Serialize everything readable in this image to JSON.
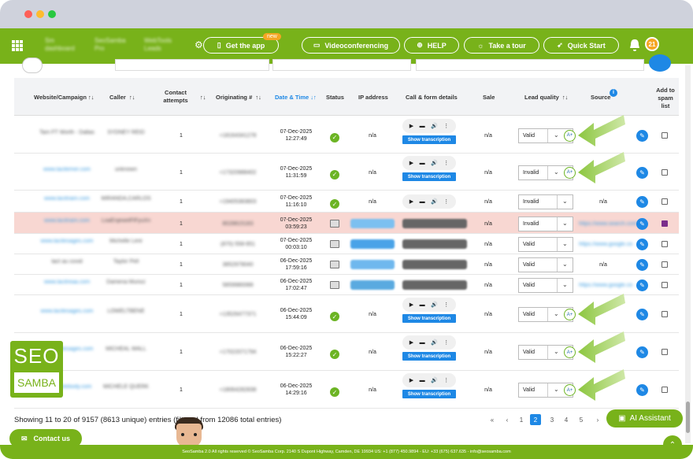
{
  "nav": {
    "dashboard": "Sm dashboard",
    "pro": "SeoSamba Pro",
    "leads": "WebTools Leads",
    "get_app": "Get the app",
    "new_badge": "new",
    "videoconf": "Videoconferencing",
    "help": "HELP",
    "tour": "Take a tour",
    "quickstart": "Quick Start",
    "notifications": "21"
  },
  "headers": {
    "website": "Website/Campaign",
    "caller": "Caller",
    "contact_attempts": "Contact attempts",
    "originating": "Originating #",
    "datetime": "Date & Time",
    "status": "Status",
    "ip": "IP address",
    "call_form": "Call & form details",
    "sale": "Sale",
    "lead_quality": "Lead quality",
    "source": "Source",
    "spam": "Add to spam list"
  },
  "rows": [
    {
      "site": "Tam FT Worth - Dallas",
      "caller": "SYDNEY REID",
      "attempts": "1",
      "orig": "+18164341278",
      "date": "07-Dec-2025",
      "time": "12:27:49",
      "type": "call",
      "ip": "n/a",
      "sale": "n/a",
      "quality": "Valid",
      "source": "n/a",
      "spam": false,
      "hl": false
    },
    {
      "site": "www.lacitemer.com",
      "caller": "unknown",
      "attempts": "1",
      "orig": "+17320988402",
      "date": "07-Dec-2025",
      "time": "11:31:59",
      "type": "call",
      "ip": "n/a",
      "sale": "n/a",
      "quality": "Invalid",
      "source": "n/a",
      "spam": false,
      "hl": false
    },
    {
      "site": "www.lacitriam.com",
      "caller": "MIRANDA,CARLOS",
      "attempts": "1",
      "orig": "+19405383803",
      "date": "07-Dec-2025",
      "time": "11:16:10",
      "type": "call",
      "ip": "n/a",
      "sale": "n/a",
      "quality": "Invalid",
      "source": "n/a",
      "spam": false,
      "hl": false
    },
    {
      "site": "www.lacitriam.com",
      "caller": "LoaEnjewelFlFyuXn",
      "attempts": "1",
      "orig": "8028815183",
      "date": "07-Dec-2025",
      "time": "03:59:23",
      "type": "form",
      "ip": "",
      "sale": "n/a",
      "quality": "Invalid",
      "source": "https://www.search.com/",
      "spam": true,
      "hl": true
    },
    {
      "site": "www.lacitesages.com",
      "caller": "Michelle Lere",
      "attempts": "1",
      "orig": "(870) 558-951",
      "date": "07-Dec-2025",
      "time": "00:03:10",
      "type": "form",
      "ip": "",
      "sale": "n/a",
      "quality": "Valid",
      "source": "https://www.google.co",
      "spam": false,
      "hl": false
    },
    {
      "site": "tact au covid",
      "caller": "Taylor Pell",
      "attempts": "1",
      "orig": "3852979040",
      "date": "06-Dec-2025",
      "time": "17:59:16",
      "type": "form",
      "ip": "",
      "sale": "n/a",
      "quality": "Valid",
      "source": "n/a",
      "spam": false,
      "hl": false
    },
    {
      "site": "www.lacitreaa.com",
      "caller": "Damena Munoz",
      "attempts": "1",
      "orig": "5859980088",
      "date": "06-Dec-2025",
      "time": "17:02:47",
      "type": "form",
      "ip": "",
      "sale": "n/a",
      "quality": "Valid",
      "source": "https://www.google.co",
      "spam": false,
      "hl": false
    },
    {
      "site": "www.lacitesages.com",
      "caller": "LOWELTBENE",
      "attempts": "1",
      "orig": "+13526477371",
      "date": "06-Dec-2025",
      "time": "15:44:09",
      "type": "call",
      "ip": "n/a",
      "sale": "n/a",
      "quality": "Valid",
      "source": "n/a",
      "spam": false,
      "hl": false
    },
    {
      "site": "www.lacitesages.com",
      "caller": "MICHEAL WALL",
      "attempts": "1",
      "orig": "+17022071794",
      "date": "06-Dec-2025",
      "time": "15:22:27",
      "type": "call",
      "ip": "n/a",
      "sale": "n/a",
      "quality": "Valid",
      "source": "n/a",
      "spam": false,
      "hl": false
    },
    {
      "site": "www.lacitebody.com",
      "caller": "MICHELE QUERK",
      "attempts": "1",
      "orig": "+18064282838",
      "date": "06-Dec-2025",
      "time": "14:29:16",
      "type": "call",
      "ip": "n/a",
      "sale": "n/a",
      "quality": "Valid",
      "source": "n/a",
      "spam": false,
      "hl": false
    }
  ],
  "transcription_label": "Show transcription",
  "footer": {
    "entries": "Showing 11 to 20 of 9157 (8613 unique) entries (filtered from 12086 total entries)",
    "pages": [
      "«",
      "‹",
      "1",
      "2",
      "3",
      "4",
      "5",
      "›"
    ],
    "current_page": "2",
    "ai_assistant": "AI Assistant",
    "contact_us": "Contact us",
    "copyright": "SeoSamba 2.0  All rights reserved © SeoSamba Corp. 2140 S Dupont Highway, Camden, DE 19934 US: +1 (877) 450.9894 - EU: +33 (675) 637.635 - info@seosamba.com"
  },
  "logo": {
    "line1": "SEO",
    "line2": "SAMBA"
  },
  "colors": {
    "brand_green": "#78b21a",
    "link_blue": "#1e88e5",
    "highlight": "#f8d7d2"
  }
}
